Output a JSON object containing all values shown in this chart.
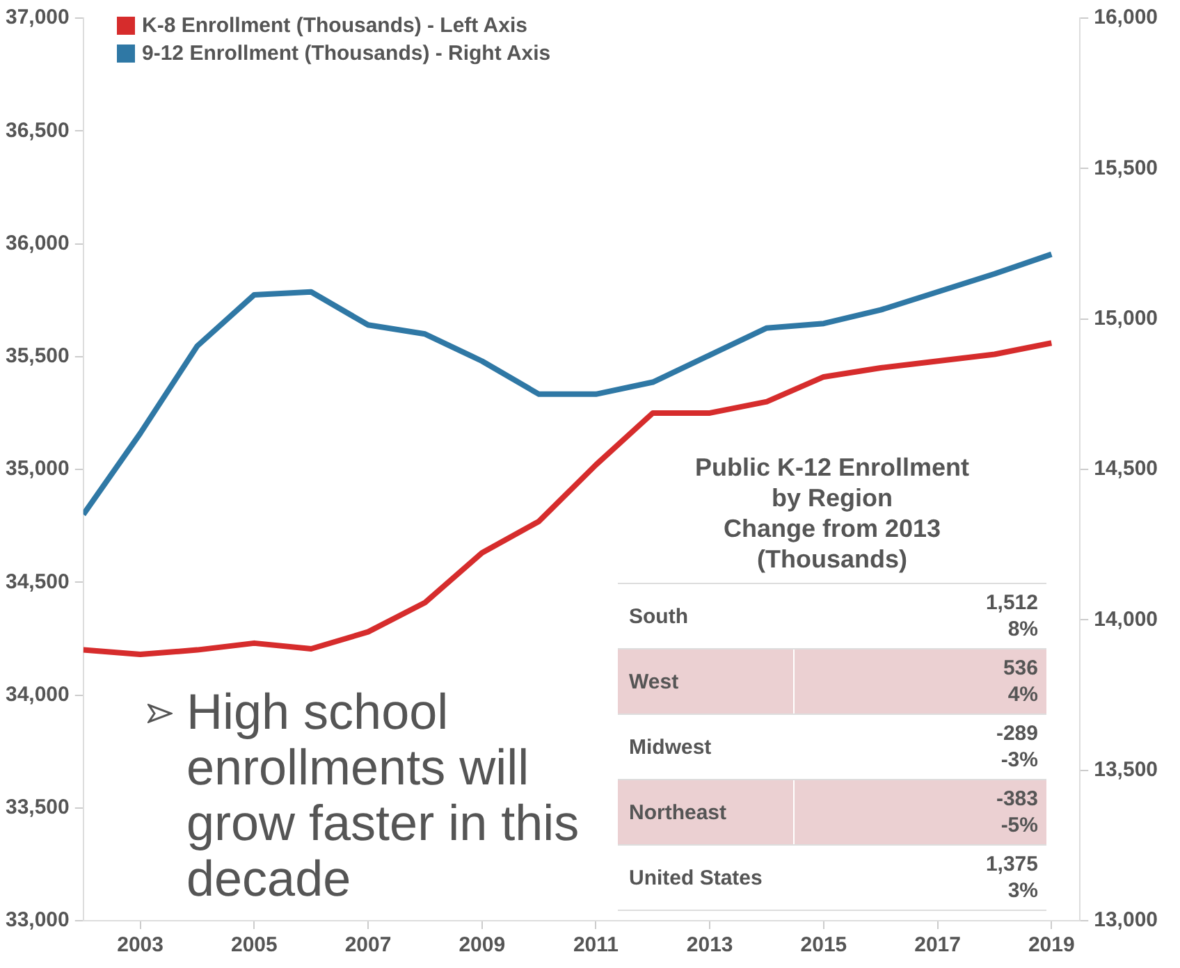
{
  "chart_data": [
    {
      "type": "line",
      "x": [
        2002,
        2003,
        2004,
        2005,
        2006,
        2007,
        2008,
        2009,
        2010,
        2011,
        2012,
        2013,
        2014,
        2015,
        2016,
        2017,
        2018,
        2019
      ],
      "series": [
        {
          "name": "K-8 Enrollment (Thousands) - Left Axis",
          "color": "#d62c2c",
          "values": [
            34200,
            34180,
            34200,
            34230,
            34205,
            34280,
            34410,
            34630,
            34770,
            35020,
            35250,
            35250,
            35300,
            35410,
            35450,
            35480,
            35510,
            35560
          ]
        },
        {
          "name": "9-12 Enrollment (Thousands) - Right Axis",
          "color": "#2f78a5",
          "axis": "y2",
          "values": [
            14350,
            14620,
            14910,
            15080,
            15090,
            14980,
            14950,
            14860,
            14750,
            14750,
            14790,
            14880,
            14970,
            14985,
            15030,
            15090,
            15150,
            15215
          ]
        }
      ],
      "xlim": [
        2002,
        2019.5
      ],
      "xticks": [
        2003,
        2005,
        2007,
        2009,
        2011,
        2013,
        2015,
        2017,
        2019
      ],
      "ylim": [
        33000,
        37000
      ],
      "yticks": [
        {
          "value": 33000,
          "label": "33,000"
        },
        {
          "value": 33500,
          "label": "33,500"
        },
        {
          "value": 34000,
          "label": "34,000"
        },
        {
          "value": 34500,
          "label": "34,500"
        },
        {
          "value": 35000,
          "label": "35,000"
        },
        {
          "value": 35500,
          "label": "35,500"
        },
        {
          "value": 36000,
          "label": "36,000"
        },
        {
          "value": 36500,
          "label": "36,500"
        },
        {
          "value": 37000,
          "label": "37,000"
        }
      ],
      "y2lim": [
        13000,
        16000
      ],
      "y2ticks": [
        {
          "value": 13000,
          "label": "13,000"
        },
        {
          "value": 13500,
          "label": "13,500"
        },
        {
          "value": 14000,
          "label": "14,000"
        },
        {
          "value": 14500,
          "label": "14,500"
        },
        {
          "value": 15000,
          "label": "15,000"
        },
        {
          "value": 15500,
          "label": "15,500"
        },
        {
          "value": 16000,
          "label": "16,000"
        }
      ],
      "grid": false,
      "legend": "top left",
      "marker": "none",
      "line_style": "solid",
      "annotations": [
        "High school enrollments will grow faster in this decade"
      ]
    },
    {
      "type": "other",
      "title": "Public K-12 Enrollment\nby Region\nChange from 2013\n(Thousands)",
      "categories": [
        "South",
        "West",
        "Midwest",
        "Northeast",
        "United States"
      ],
      "series": [
        {
          "values": [
            1512,
            536,
            -289,
            -383,
            1375
          ],
          "value_labels": [
            "1,512",
            "536",
            "-289",
            "-383",
            "1,375"
          ]
        },
        {
          "values": [
            8,
            4,
            -3,
            -5,
            3
          ],
          "value_labels": [
            "8%",
            "4%",
            "-3%",
            "-5%",
            "3%"
          ]
        }
      ]
    }
  ]
}
